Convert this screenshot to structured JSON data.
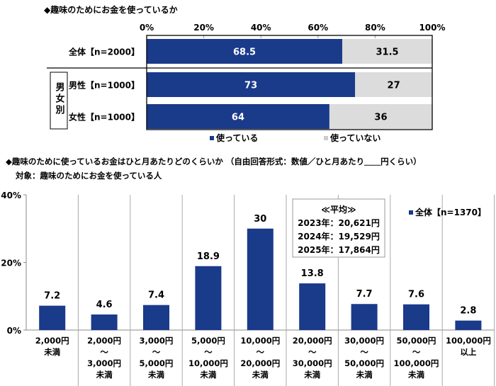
{
  "chart_data": [
    {
      "type": "bar",
      "orientation": "horizontal-stacked",
      "title": "◆趣味のためにお金を使っているか",
      "categories": [
        "全体【n=2000】",
        "男性【n=1000】",
        "女性【n=1000】"
      ],
      "group_label": "男女別",
      "xlim": [
        0,
        100
      ],
      "xticks": [
        "0%",
        "20%",
        "40%",
        "60%",
        "80%",
        "100%"
      ],
      "series": [
        {
          "name": "使っている",
          "values": [
            68.5,
            73.0,
            64.0
          ],
          "color": "#1a3a8a"
        },
        {
          "name": "使っていない",
          "values": [
            31.5,
            27.0,
            36.0
          ],
          "color": "#dcdcdc"
        }
      ],
      "legend": "bottom"
    },
    {
      "type": "bar",
      "title": "◆趣味のために使っているお金はひと月あたりどのくらいか （自由回答形式：数値／ひと月あたり＿＿円くらい）",
      "subtitle": "対象：趣味のためにお金を使っている人",
      "categories": [
        [
          "2,000円",
          "未満"
        ],
        [
          "2,000円",
          "～",
          "3,000円",
          "未満"
        ],
        [
          "3,000円",
          "～",
          "5,000円",
          "未満"
        ],
        [
          "5,000円",
          "～",
          "10,000円",
          "未満"
        ],
        [
          "10,000円",
          "～",
          "20,000円",
          "未満"
        ],
        [
          "20,000円",
          "～",
          "30,000円",
          "未満"
        ],
        [
          "30,000円",
          "～",
          "50,000円",
          "未満"
        ],
        [
          "50,000円",
          "～",
          "100,000円",
          "未満"
        ],
        [
          "100,000円",
          "以上"
        ]
      ],
      "series": [
        {
          "name": "全体【n=1370】",
          "values": [
            7.2,
            4.6,
            7.4,
            18.9,
            30.0,
            13.8,
            7.7,
            7.6,
            2.8
          ],
          "color": "#1a3a8a"
        }
      ],
      "ylim": [
        0,
        40
      ],
      "yticks": [
        "0%",
        "20%",
        "40%"
      ],
      "legend": "top-right",
      "annotation": [
        "≪平均≫",
        "2023年：20,621円",
        "2024年：19,529円",
        "2025年：17,864円"
      ]
    }
  ]
}
